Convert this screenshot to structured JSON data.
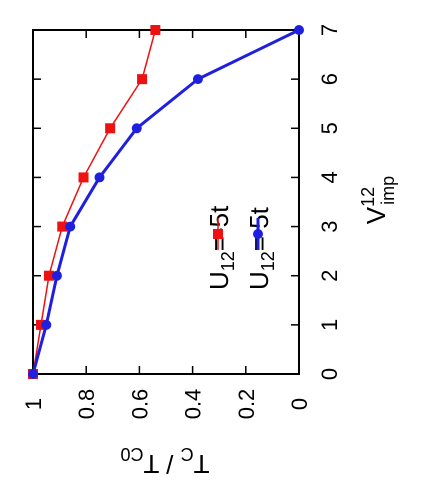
{
  "chart_data": {
    "type": "line",
    "orientation": "rotated-90",
    "x": [
      0,
      1,
      2,
      3,
      4,
      5,
      6,
      7
    ],
    "xlim": [
      0,
      7
    ],
    "ylim": [
      0,
      1
    ],
    "x_ticks": [
      "0",
      "1",
      "2",
      "3",
      "4",
      "5",
      "6",
      "7"
    ],
    "y_ticks": [
      "0",
      "0.2",
      "0.4",
      "0.6",
      "0.8",
      "1"
    ],
    "xlabel": {
      "base": "V",
      "sup": "12",
      "sub": "imp"
    },
    "ylabel": {
      "t1": "T",
      "s1": "C",
      "sep": " / ",
      "t2": "T",
      "s2": "C0"
    },
    "grid": false,
    "legend_position": "bottom-left",
    "series": [
      {
        "name_base": "U",
        "name_sub": "12",
        "name_rest": "=-5t",
        "color": "#ee1111",
        "marker": "square",
        "values": [
          1.0,
          0.97,
          0.94,
          0.89,
          0.81,
          0.71,
          0.59,
          0.54
        ]
      },
      {
        "name_base": "U",
        "name_sub": "12",
        "name_rest": "= 5t",
        "color": "#1f1fe0",
        "marker": "circle",
        "values": [
          1.0,
          0.95,
          0.91,
          0.86,
          0.75,
          0.61,
          0.38,
          0.0
        ]
      }
    ]
  }
}
